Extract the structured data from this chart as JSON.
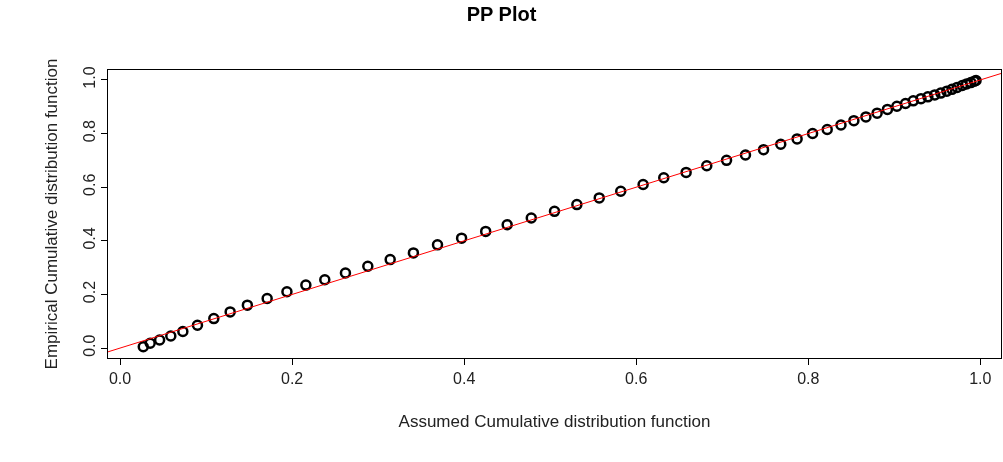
{
  "chart_data": {
    "type": "scatter",
    "title": "PP Plot",
    "xlabel": "Assumed Cumulative distribution function",
    "ylabel": "Empirical Cumulative distribution function",
    "xlim": [
      -0.014,
      1.024
    ],
    "ylim": [
      -0.037,
      1.037
    ],
    "xticks": [
      {
        "value": 0,
        "label": "0.0"
      },
      {
        "value": 0.2,
        "label": "0.2"
      },
      {
        "value": 0.4,
        "label": "0.4"
      },
      {
        "value": 0.6,
        "label": "0.6"
      },
      {
        "value": 0.8,
        "label": "0.8"
      },
      {
        "value": 1,
        "label": "1.0"
      }
    ],
    "yticks": [
      {
        "value": 0,
        "label": "0.0"
      },
      {
        "value": 0.2,
        "label": "0.2"
      },
      {
        "value": 0.4,
        "label": "0.4"
      },
      {
        "value": 0.6,
        "label": "0.6"
      },
      {
        "value": 0.8,
        "label": "0.8"
      },
      {
        "value": 1,
        "label": "1.0"
      }
    ],
    "grid": false,
    "legend": false,
    "marker": "circle",
    "series": [
      {
        "color": "#000000",
        "x": [
          0.027,
          0.035,
          0.046,
          0.059,
          0.073,
          0.09,
          0.109,
          0.128,
          0.148,
          0.171,
          0.194,
          0.216,
          0.238,
          0.262,
          0.288,
          0.314,
          0.341,
          0.369,
          0.397,
          0.425,
          0.45,
          0.478,
          0.505,
          0.531,
          0.557,
          0.582,
          0.608,
          0.632,
          0.658,
          0.682,
          0.705,
          0.727,
          0.748,
          0.768,
          0.787,
          0.805,
          0.822,
          0.838,
          0.853,
          0.867,
          0.88,
          0.892,
          0.903,
          0.913,
          0.922,
          0.931,
          0.939,
          0.947,
          0.954,
          0.961,
          0.967,
          0.973,
          0.979,
          0.984,
          0.989,
          0.993,
          0.995
        ],
        "values": [
          0.005,
          0.018,
          0.03,
          0.045,
          0.062,
          0.085,
          0.11,
          0.135,
          0.16,
          0.185,
          0.21,
          0.235,
          0.255,
          0.28,
          0.305,
          0.33,
          0.355,
          0.385,
          0.41,
          0.435,
          0.46,
          0.485,
          0.51,
          0.535,
          0.56,
          0.585,
          0.61,
          0.635,
          0.655,
          0.68,
          0.7,
          0.72,
          0.74,
          0.76,
          0.78,
          0.8,
          0.815,
          0.832,
          0.848,
          0.862,
          0.876,
          0.89,
          0.902,
          0.912,
          0.922,
          0.93,
          0.937,
          0.944,
          0.951,
          0.958,
          0.965,
          0.972,
          0.979,
          0.985,
          0.99,
          0.995,
          0.998
        ]
      },
      {
        "type": "line",
        "marker": "none",
        "color": "#ff0000",
        "x": [
          -0.014,
          1.024
        ],
        "values": [
          -0.014,
          1.024
        ]
      }
    ]
  }
}
